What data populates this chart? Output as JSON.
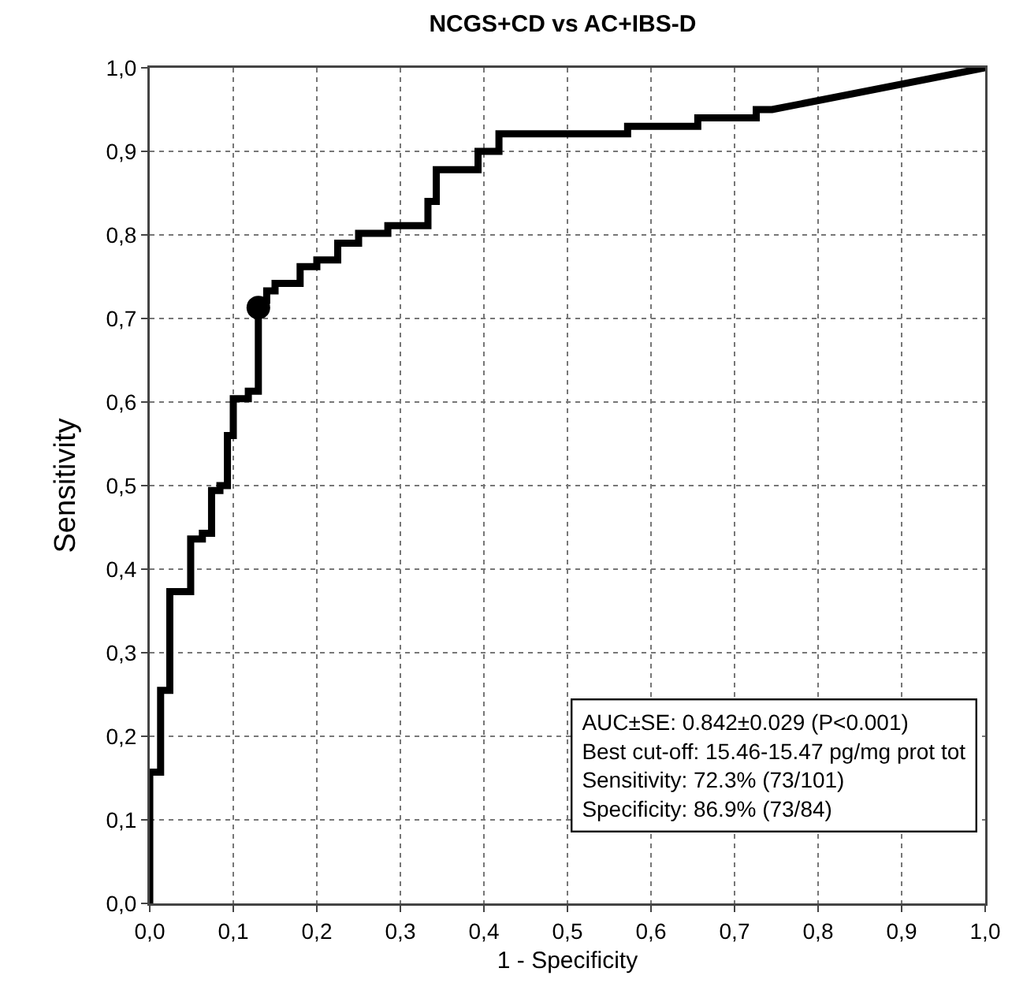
{
  "chart_data": {
    "type": "line",
    "title": "NCGS+CD vs AC+IBS-D",
    "xlabel": "1 - Specificity",
    "ylabel": "Sensitivity",
    "series": [
      {
        "color": "#000000",
        "marker": "none",
        "line_style": "solid",
        "x": [
          0,
          0,
          0.013,
          0.013,
          0.024,
          0.024,
          0.049,
          0.049,
          0.063,
          0.063,
          0.074,
          0.074,
          0.084,
          0.084,
          0.093,
          0.093,
          0.1,
          0.1,
          0.118,
          0.118,
          0.13,
          0.13,
          0.14,
          0.14,
          0.15,
          0.15,
          0.18,
          0.18,
          0.2,
          0.2,
          0.225,
          0.225,
          0.25,
          0.25,
          0.285,
          0.285,
          0.333,
          0.333,
          0.343,
          0.343,
          0.393,
          0.393,
          0.418,
          0.418,
          0.572,
          0.572,
          0.656,
          0.656,
          0.726,
          0.726,
          0.745,
          1
        ],
        "values": [
          0,
          0.157,
          0.157,
          0.255,
          0.255,
          0.373,
          0.373,
          0.436,
          0.436,
          0.443,
          0.443,
          0.494,
          0.494,
          0.5,
          0.5,
          0.56,
          0.56,
          0.604,
          0.604,
          0.613,
          0.613,
          0.713,
          0.72,
          0.733,
          0.733,
          0.742,
          0.742,
          0.762,
          0.762,
          0.77,
          0.77,
          0.79,
          0.79,
          0.802,
          0.802,
          0.811,
          0.811,
          0.84,
          0.84,
          0.878,
          0.878,
          0.9,
          0.9,
          0.921,
          0.921,
          0.93,
          0.93,
          0.94,
          0.94,
          0.95,
          0.95,
          1
        ]
      },
      {
        "type": "scatter",
        "color": "#000000",
        "marker": "circle",
        "x": [
          0.13
        ],
        "values": [
          0.713
        ]
      }
    ],
    "xlim": [
      0,
      1
    ],
    "ylim": [
      0,
      1
    ],
    "xticks": [
      {
        "value": 0,
        "label": "0,0"
      },
      {
        "value": 0.1,
        "label": "0,1"
      },
      {
        "value": 0.2,
        "label": "0,2"
      },
      {
        "value": 0.3,
        "label": "0,3"
      },
      {
        "value": 0.4,
        "label": "0,4"
      },
      {
        "value": 0.5,
        "label": "0,5"
      },
      {
        "value": 0.6,
        "label": "0,6"
      },
      {
        "value": 0.7,
        "label": "0,7"
      },
      {
        "value": 0.8,
        "label": "0,8"
      },
      {
        "value": 0.9,
        "label": "0,9"
      },
      {
        "value": 1,
        "label": "1,0"
      }
    ],
    "yticks": [
      {
        "value": 0,
        "label": "0,0"
      },
      {
        "value": 0.1,
        "label": "0,1"
      },
      {
        "value": 0.2,
        "label": "0,2"
      },
      {
        "value": 0.3,
        "label": "0,3"
      },
      {
        "value": 0.4,
        "label": "0,4"
      },
      {
        "value": 0.5,
        "label": "0,5"
      },
      {
        "value": 0.6,
        "label": "0,6"
      },
      {
        "value": 0.7,
        "label": "0,7"
      },
      {
        "value": 0.8,
        "label": "0,8"
      },
      {
        "value": 0.9,
        "label": "0,9"
      },
      {
        "value": 1,
        "label": "1,0"
      }
    ],
    "grid": true,
    "annotations": [
      "AUC±SE: 0.842±0.029 (P<0.001)",
      "Best cut-off: 15.46-15.47 pg/mg prot tot",
      "Sensitivity: 72.3% (73/101)",
      "Specificity: 86.9% (73/84)"
    ]
  }
}
